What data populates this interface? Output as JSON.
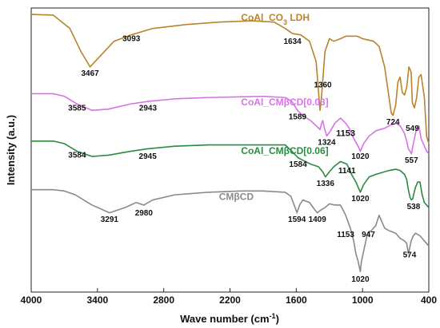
{
  "chart_data": {
    "type": "line",
    "xlabel": "Wave number (cm",
    "xlabel_sup": "-1",
    "xlabel_tail": ")",
    "ylabel": "Intensity (a.u.)",
    "xlim": [
      4000,
      400
    ],
    "x_ticks": [
      "4000",
      "3400",
      "2800",
      "2200",
      "1600",
      "1000",
      "400"
    ],
    "y_ticks_shown": false,
    "grid": false,
    "series": [
      {
        "name": "CoAl_CO3 LDH",
        "label_main": "CoAl_CO",
        "label_sub": "3",
        "label_tail": " LDH",
        "color": "#b8842c",
        "x": [
          4000,
          3800,
          3650,
          3550,
          3467,
          3380,
          3250,
          3093,
          2900,
          2600,
          2300,
          2000,
          1800,
          1700,
          1634,
          1560,
          1480,
          1420,
          1385,
          1370,
          1340,
          1300,
          1260,
          1200,
          1150,
          1100,
          1050,
          1000,
          950,
          900,
          850,
          800,
          760,
          740,
          724,
          700,
          680,
          660,
          640,
          620,
          600,
          580,
          560,
          549,
          530,
          510,
          490,
          470,
          440,
          420,
          400
        ],
        "y": [
          98.5,
          98.2,
          93,
          84,
          78,
          82,
          88,
          90.5,
          93,
          94.5,
          95.5,
          96,
          95.5,
          93,
          91,
          90.5,
          88,
          80,
          61,
          67,
          84,
          89,
          88,
          89,
          90,
          90,
          90,
          89,
          88.5,
          88,
          86,
          78,
          66,
          60,
          59,
          63,
          72,
          74,
          68,
          67,
          70,
          78,
          76,
          64,
          62,
          66,
          74,
          75,
          66,
          51,
          48
        ]
      },
      {
        "name": "CoAl_CMβCD[0.03]",
        "label": "CoAl_CMβCD[0.03]",
        "color": "#d873e6",
        "x": [
          4000,
          3800,
          3700,
          3585,
          3450,
          3300,
          3100,
          2943,
          2700,
          2400,
          2100,
          1900,
          1700,
          1640,
          1589,
          1540,
          1470,
          1420,
          1385,
          1370,
          1360,
          1345,
          1324,
          1290,
          1250,
          1200,
          1153,
          1120,
          1080,
          1040,
          1020,
          990,
          940,
          880,
          800,
          760,
          700,
          660,
          620,
          600,
          585,
          570,
          557,
          540,
          510,
          490,
          470,
          440,
          420,
          400
        ],
        "y": [
          67.5,
          67.5,
          66.5,
          63.5,
          61,
          61.5,
          63.5,
          64.5,
          65.5,
          66,
          66.3,
          66.5,
          66,
          64.5,
          61,
          59,
          57,
          55,
          53.5,
          56,
          57,
          54,
          51,
          53,
          56,
          58,
          56,
          54,
          50,
          47,
          45,
          48,
          51,
          53,
          54,
          55,
          56,
          55,
          52,
          49,
          46,
          45,
          44,
          48,
          54,
          55,
          50,
          47,
          45,
          44
        ]
      },
      {
        "name": "CoAl_CMβCD[0.06]",
        "label": "CoAl_CMβCD[0.06]",
        "color": "#2a8a41",
        "x": [
          4000,
          3800,
          3700,
          3584,
          3450,
          3300,
          3100,
          2945,
          2700,
          2400,
          2100,
          1900,
          1700,
          1640,
          1584,
          1540,
          1470,
          1400,
          1360,
          1336,
          1300,
          1260,
          1200,
          1141,
          1100,
          1060,
          1030,
          1020,
          990,
          940,
          880,
          800,
          760,
          700,
          660,
          620,
          600,
          585,
          570,
          557,
          545,
          538,
          520,
          500,
          480,
          460,
          440,
          420,
          400
        ],
        "y": [
          49,
          49,
          48,
          45,
          43,
          43.5,
          45,
          46,
          47,
          47.5,
          47.5,
          47.5,
          47.5,
          45,
          42.5,
          41.5,
          40,
          39,
          37,
          35,
          37,
          39,
          41,
          40,
          36,
          33,
          30,
          29,
          32,
          35,
          36,
          37,
          37.5,
          38,
          37.5,
          36,
          34,
          30,
          27,
          26,
          26.5,
          28,
          31,
          33,
          33,
          28,
          25,
          24,
          23
        ]
      },
      {
        "name": "CMβCD",
        "label": "CMβCD",
        "color": "#8a8a8a",
        "x": [
          4000,
          3800,
          3700,
          3600,
          3450,
          3291,
          3150,
          3050,
          2980,
          2900,
          2700,
          2400,
          2100,
          1900,
          1700,
          1650,
          1610,
          1594,
          1570,
          1540,
          1480,
          1430,
          1409,
          1380,
          1340,
          1300,
          1250,
          1200,
          1170,
          1153,
          1110,
          1080,
          1060,
          1040,
          1030,
          1020,
          1010,
          990,
          960,
          947,
          920,
          880,
          850,
          820,
          800,
          760,
          700,
          660,
          620,
          600,
          585,
          574,
          560,
          540,
          520,
          480,
          440,
          420,
          400
        ],
        "y": [
          30,
          30,
          29.5,
          28,
          24,
          21,
          23,
          25,
          24,
          26,
          28,
          29,
          29.5,
          29.5,
          29,
          27.5,
          23,
          21,
          24,
          26,
          25,
          22,
          21,
          22,
          23,
          24.5,
          24,
          24,
          21.5,
          20,
          15,
          10,
          5,
          2,
          0,
          -2,
          2,
          6,
          12,
          13.5,
          14,
          16,
          20,
          17,
          15,
          14,
          13,
          11,
          10,
          9,
          5,
          7,
          10,
          12,
          13,
          12,
          10,
          9,
          8
        ]
      }
    ],
    "annotations": [
      {
        "text": "3467",
        "x": 3467,
        "y": 74.5
      },
      {
        "text": "3093",
        "x": 3093,
        "y": 88
      },
      {
        "text": "1634",
        "x": 1634,
        "y": 87
      },
      {
        "text": "1360",
        "x": 1360,
        "y": 70
      },
      {
        "text": "1324",
        "x": 1324,
        "y": 47.5
      },
      {
        "text": "724",
        "x": 724,
        "y": 55.5
      },
      {
        "text": "549",
        "x": 549,
        "y": 53
      },
      {
        "text": "3585",
        "x": 3585,
        "y": 61
      },
      {
        "text": "2943",
        "x": 2943,
        "y": 61
      },
      {
        "text": "1589",
        "x": 1589,
        "y": 57.5
      },
      {
        "text": "1153",
        "x": 1153,
        "y": 51,
        "large": true
      },
      {
        "text": "1020",
        "x": 1020,
        "y": 42
      },
      {
        "text": "557",
        "x": 557,
        "y": 40.5
      },
      {
        "text": "3584",
        "x": 3584,
        "y": 42.5
      },
      {
        "text": "2945",
        "x": 2945,
        "y": 42
      },
      {
        "text": "1584",
        "x": 1584,
        "y": 39
      },
      {
        "text": "1336",
        "x": 1336,
        "y": 31.5
      },
      {
        "text": "1141",
        "x": 1141,
        "y": 36.5
      },
      {
        "text": "1020",
        "x": 1020,
        "y": 25.5
      },
      {
        "text": "538",
        "x": 538,
        "y": 22.5
      },
      {
        "text": "3291",
        "x": 3291,
        "y": 17.5
      },
      {
        "text": "2980",
        "x": 2980,
        "y": 20
      },
      {
        "text": "1594",
        "x": 1594,
        "y": 17.5
      },
      {
        "text": "1409",
        "x": 1409,
        "y": 17.5
      },
      {
        "text": "1153",
        "x": 1153,
        "y": 11.5
      },
      {
        "text": "947",
        "x": 947,
        "y": 11.5
      },
      {
        "text": "574",
        "x": 574,
        "y": 3.5
      },
      {
        "text": "1020",
        "x": 1020,
        "y": -6
      }
    ],
    "series_label_positions": [
      {
        "x": 2100,
        "y": 96
      },
      {
        "x": 2100,
        "y": 63
      },
      {
        "x": 2100,
        "y": 44
      },
      {
        "x": 2300,
        "y": 26
      }
    ],
    "ylim": [
      -10,
      101
    ]
  }
}
